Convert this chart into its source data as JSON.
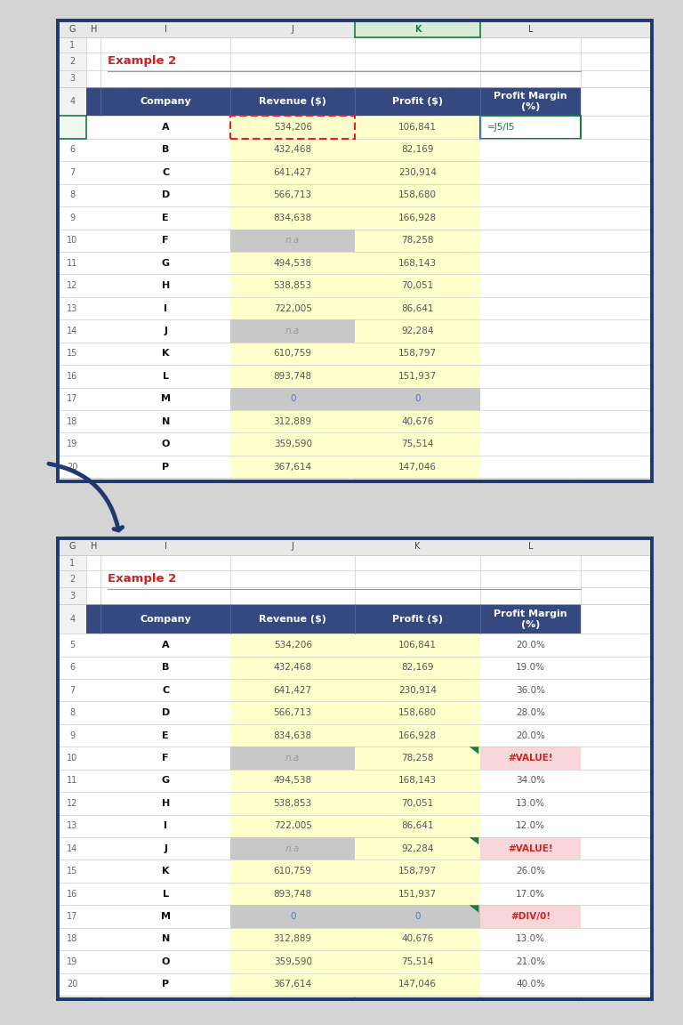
{
  "title": "Example 2",
  "bg_color": "#d4d4d4",
  "yellow_bg": "#ffffcc",
  "gray_bg": "#c8c8c8",
  "white_bg": "#ffffff",
  "error_bg": "#f8d7da",
  "error_fg": "#cc2222",
  "hdr_bg": "#354880",
  "hdr_fg": "#ffffff",
  "normal_num": "#555555",
  "bold_co": "#111111",
  "teal_fg": "#1a7a40",
  "rownum_fg": "#666666",
  "outer_border": "#1e3a6e",
  "col_hdr_bg": "#e8e8e8",
  "col_hdr_fg": "#444444",
  "col_hdr_active_bg": "#d0ead0",
  "col_hdr_active_fg": "#1a7a40",
  "grid_color": "#cccccc",
  "red_dashed": "#cc2222",
  "green_accent": "#1a7a40",
  "rows": [
    {
      "row": 5,
      "company": "A",
      "revenue": "534,206",
      "profit": "106,841",
      "margin": "=J5/I5",
      "rev_bg": "yellow_dashed",
      "prof_bg": "yellow",
      "margin_type": "formula"
    },
    {
      "row": 6,
      "company": "B",
      "revenue": "432,468",
      "profit": "82,169",
      "margin": "",
      "rev_bg": "yellow",
      "prof_bg": "yellow",
      "margin_type": "empty"
    },
    {
      "row": 7,
      "company": "C",
      "revenue": "641,427",
      "profit": "230,914",
      "margin": "",
      "rev_bg": "yellow",
      "prof_bg": "yellow",
      "margin_type": "empty"
    },
    {
      "row": 8,
      "company": "D",
      "revenue": "566,713",
      "profit": "158,680",
      "margin": "",
      "rev_bg": "yellow",
      "prof_bg": "yellow",
      "margin_type": "empty"
    },
    {
      "row": 9,
      "company": "E",
      "revenue": "834,638",
      "profit": "166,928",
      "margin": "",
      "rev_bg": "yellow",
      "prof_bg": "yellow",
      "margin_type": "empty"
    },
    {
      "row": 10,
      "company": "F",
      "revenue": "n.a",
      "profit": "78,258",
      "margin": "",
      "rev_bg": "gray",
      "prof_bg": "yellow",
      "margin_type": "empty"
    },
    {
      "row": 11,
      "company": "G",
      "revenue": "494,538",
      "profit": "168,143",
      "margin": "",
      "rev_bg": "yellow",
      "prof_bg": "yellow",
      "margin_type": "empty"
    },
    {
      "row": 12,
      "company": "H",
      "revenue": "538,853",
      "profit": "70,051",
      "margin": "",
      "rev_bg": "yellow",
      "prof_bg": "yellow",
      "margin_type": "empty"
    },
    {
      "row": 13,
      "company": "I",
      "revenue": "722,005",
      "profit": "86,641",
      "margin": "",
      "rev_bg": "yellow",
      "prof_bg": "yellow",
      "margin_type": "empty"
    },
    {
      "row": 14,
      "company": "J",
      "revenue": "n.a",
      "profit": "92,284",
      "margin": "",
      "rev_bg": "gray",
      "prof_bg": "yellow",
      "margin_type": "empty"
    },
    {
      "row": 15,
      "company": "K",
      "revenue": "610,759",
      "profit": "158,797",
      "margin": "",
      "rev_bg": "yellow",
      "prof_bg": "yellow",
      "margin_type": "empty"
    },
    {
      "row": 16,
      "company": "L",
      "revenue": "893,748",
      "profit": "151,937",
      "margin": "",
      "rev_bg": "yellow",
      "prof_bg": "yellow",
      "margin_type": "empty"
    },
    {
      "row": 17,
      "company": "M",
      "revenue": "0",
      "profit": "0",
      "margin": "",
      "rev_bg": "gray",
      "prof_bg": "gray",
      "margin_type": "empty"
    },
    {
      "row": 18,
      "company": "N",
      "revenue": "312,889",
      "profit": "40,676",
      "margin": "",
      "rev_bg": "yellow",
      "prof_bg": "yellow",
      "margin_type": "empty"
    },
    {
      "row": 19,
      "company": "O",
      "revenue": "359,590",
      "profit": "75,514",
      "margin": "",
      "rev_bg": "yellow",
      "prof_bg": "yellow",
      "margin_type": "empty"
    },
    {
      "row": 20,
      "company": "P",
      "revenue": "367,614",
      "profit": "147,046",
      "margin": "",
      "rev_bg": "yellow",
      "prof_bg": "yellow",
      "margin_type": "empty"
    }
  ],
  "rows2": [
    {
      "row": 5,
      "company": "A",
      "revenue": "534,206",
      "profit": "106,841",
      "margin": "20.0%",
      "rev_bg": "yellow",
      "prof_bg": "yellow",
      "margin_type": "normal"
    },
    {
      "row": 6,
      "company": "B",
      "revenue": "432,468",
      "profit": "82,169",
      "margin": "19.0%",
      "rev_bg": "yellow",
      "prof_bg": "yellow",
      "margin_type": "normal"
    },
    {
      "row": 7,
      "company": "C",
      "revenue": "641,427",
      "profit": "230,914",
      "margin": "36.0%",
      "rev_bg": "yellow",
      "prof_bg": "yellow",
      "margin_type": "normal"
    },
    {
      "row": 8,
      "company": "D",
      "revenue": "566,713",
      "profit": "158,680",
      "margin": "28.0%",
      "rev_bg": "yellow",
      "prof_bg": "yellow",
      "margin_type": "normal"
    },
    {
      "row": 9,
      "company": "E",
      "revenue": "834,638",
      "profit": "166,928",
      "margin": "20.0%",
      "rev_bg": "yellow",
      "prof_bg": "yellow",
      "margin_type": "normal"
    },
    {
      "row": 10,
      "company": "F",
      "revenue": "n.a",
      "profit": "78,258",
      "margin": "#VALUE!",
      "rev_bg": "gray",
      "prof_bg": "yellow",
      "margin_type": "error"
    },
    {
      "row": 11,
      "company": "G",
      "revenue": "494,538",
      "profit": "168,143",
      "margin": "34.0%",
      "rev_bg": "yellow",
      "prof_bg": "yellow",
      "margin_type": "normal"
    },
    {
      "row": 12,
      "company": "H",
      "revenue": "538,853",
      "profit": "70,051",
      "margin": "13.0%",
      "rev_bg": "yellow",
      "prof_bg": "yellow",
      "margin_type": "normal"
    },
    {
      "row": 13,
      "company": "I",
      "revenue": "722,005",
      "profit": "86,641",
      "margin": "12.0%",
      "rev_bg": "yellow",
      "prof_bg": "yellow",
      "margin_type": "normal"
    },
    {
      "row": 14,
      "company": "J",
      "revenue": "n.a",
      "profit": "92,284",
      "margin": "#VALUE!",
      "rev_bg": "gray",
      "prof_bg": "yellow",
      "margin_type": "error"
    },
    {
      "row": 15,
      "company": "K",
      "revenue": "610,759",
      "profit": "158,797",
      "margin": "26.0%",
      "rev_bg": "yellow",
      "prof_bg": "yellow",
      "margin_type": "normal"
    },
    {
      "row": 16,
      "company": "L",
      "revenue": "893,748",
      "profit": "151,937",
      "margin": "17.0%",
      "rev_bg": "yellow",
      "prof_bg": "yellow",
      "margin_type": "normal"
    },
    {
      "row": 17,
      "company": "M",
      "revenue": "0",
      "profit": "0",
      "margin": "#DIV/0!",
      "rev_bg": "gray",
      "prof_bg": "gray",
      "margin_type": "error"
    },
    {
      "row": 18,
      "company": "N",
      "revenue": "312,889",
      "profit": "40,676",
      "margin": "13.0%",
      "rev_bg": "yellow",
      "prof_bg": "yellow",
      "margin_type": "normal"
    },
    {
      "row": 19,
      "company": "O",
      "revenue": "359,590",
      "profit": "75,514",
      "margin": "21.0%",
      "rev_bg": "yellow",
      "prof_bg": "yellow",
      "margin_type": "normal"
    },
    {
      "row": 20,
      "company": "P",
      "revenue": "367,614",
      "profit": "147,046",
      "margin": "40.0%",
      "rev_bg": "yellow",
      "prof_bg": "yellow",
      "margin_type": "normal"
    }
  ]
}
